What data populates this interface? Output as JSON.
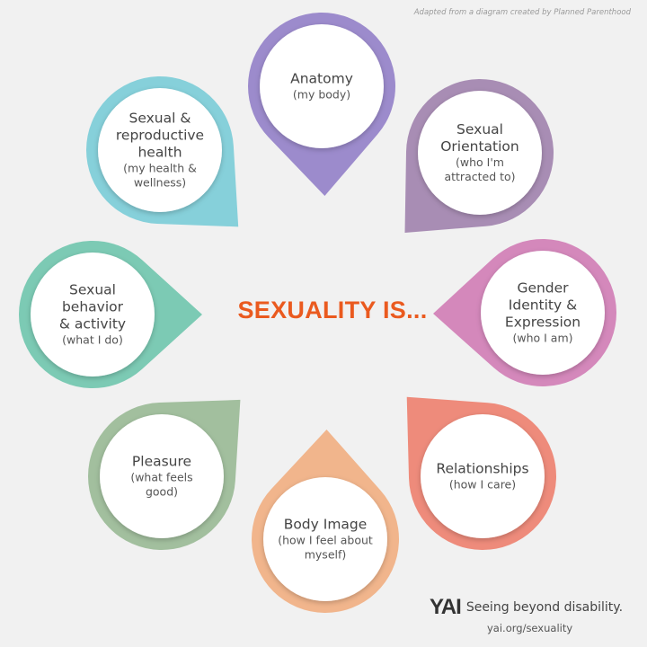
{
  "attribution": "Adapted from a diagram created by Planned Parenthood",
  "center_title": "SEXUALITY IS...",
  "petals": [
    {
      "title": [
        "Anatomy"
      ],
      "sub": [
        "(my body)"
      ],
      "color": "#9c8bcc"
    },
    {
      "title": [
        "Sexual",
        "Orientation"
      ],
      "sub": [
        "(who I'm",
        "attracted to)"
      ],
      "color": "#a88db4"
    },
    {
      "title": [
        "Gender",
        "Identity &",
        "Expression"
      ],
      "sub": [
        "(who I am)"
      ],
      "color": "#d488bb"
    },
    {
      "title": [
        "Relationships"
      ],
      "sub": [
        "(how I care)"
      ],
      "color": "#ee8b7b"
    },
    {
      "title": [
        "Body Image"
      ],
      "sub": [
        "(how I feel about",
        "myself)"
      ],
      "color": "#f1b58c"
    },
    {
      "title": [
        "Pleasure"
      ],
      "sub": [
        "(what feels",
        "good)"
      ],
      "color": "#a2bf9e"
    },
    {
      "title": [
        "Sexual",
        "behavior",
        "& activity"
      ],
      "sub": [
        "(what I do)"
      ],
      "color": "#7ccab4"
    },
    {
      "title": [
        "Sexual &",
        "reproductive",
        "health"
      ],
      "sub": [
        "(my health &",
        "wellness)"
      ],
      "color": "#86d0da"
    }
  ],
  "logo": {
    "mark": "YAI",
    "tagline": "Seeing beyond disability.",
    "url": "yai.org/sexuality"
  },
  "title_color": "#ea5a1f"
}
